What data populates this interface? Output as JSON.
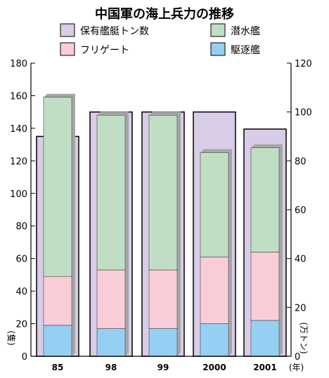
{
  "chart_data": {
    "type": "bar",
    "title": "中国軍の海上兵力の推移",
    "categories": [
      "85",
      "98",
      "99",
      "2000",
      "2001"
    ],
    "x_unit": "(年)",
    "left_axis": {
      "unit": "(隻)",
      "min": 0,
      "max": 180,
      "ticks": [
        "0",
        "20",
        "40",
        "60",
        "80",
        "100",
        "120",
        "140",
        "160",
        "180"
      ]
    },
    "right_axis": {
      "unit": "(万トン)",
      "min": 0,
      "max": 120,
      "ticks": [
        "0",
        "20",
        "40",
        "60",
        "80",
        "100",
        "120"
      ]
    },
    "tonnage_series": {
      "name": "保有艦艇トン数",
      "axis": "right",
      "values": [
        90,
        100,
        100,
        100,
        93
      ]
    },
    "stacked_series": [
      {
        "name": "駆逐艦",
        "axis": "left",
        "values": [
          19,
          17,
          17,
          20,
          22
        ]
      },
      {
        "name": "フリゲート",
        "axis": "left",
        "values": [
          30,
          36,
          36,
          41,
          42
        ]
      },
      {
        "name": "潜水艦",
        "axis": "left",
        "values": [
          110,
          95,
          95,
          64,
          64
        ]
      }
    ],
    "grid": false,
    "legend_position": "top"
  },
  "legend": [
    {
      "label": "保有艦艇トン数",
      "color": "#d8cce6"
    },
    {
      "label": "潜水艦",
      "color": "#c0dec4"
    },
    {
      "label": "フリゲート",
      "color": "#f8cdd8"
    },
    {
      "label": "駆逐艦",
      "color": "#95d0f2"
    }
  ],
  "colors": {
    "tonnage": "#d8cce6",
    "submarine": "#c0dec4",
    "frigate": "#f8cdd8",
    "destroyer": "#95d0f2",
    "shadow": "#a6a6a6"
  }
}
